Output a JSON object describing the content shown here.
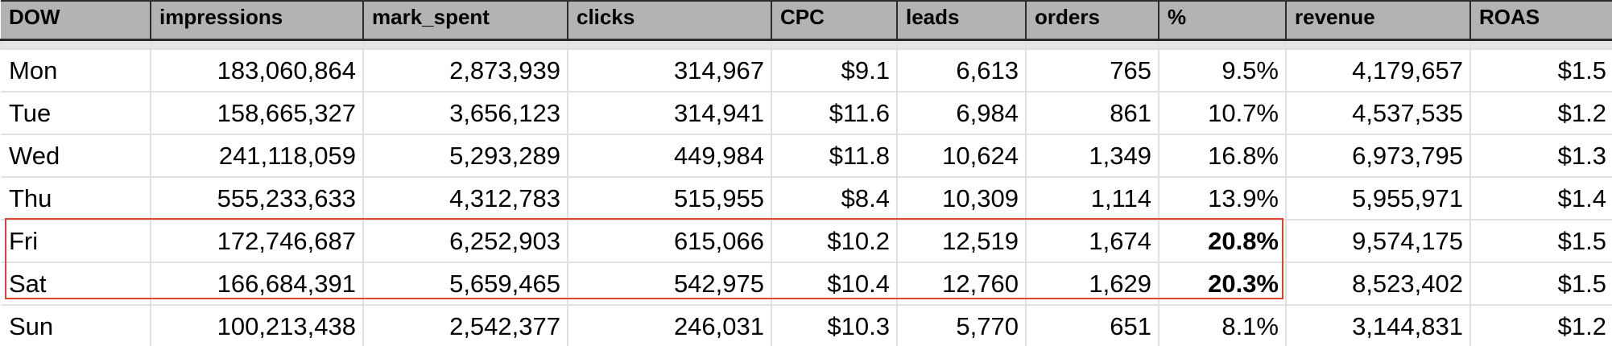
{
  "table": {
    "headers": [
      "DOW",
      "impressions",
      "mark_spent",
      "clicks",
      "CPC",
      "leads",
      "orders",
      "%",
      "revenue",
      "ROAS"
    ],
    "rows": [
      [
        "Mon",
        "183,060,864",
        "2,873,939",
        "314,967",
        "$9.1",
        "6,613",
        "765",
        "9.5%",
        "4,179,657",
        "$1.5"
      ],
      [
        "Tue",
        "158,665,327",
        "3,656,123",
        "314,941",
        "$11.6",
        "6,984",
        "861",
        "10.7%",
        "4,537,535",
        "$1.2"
      ],
      [
        "Wed",
        "241,118,059",
        "5,293,289",
        "449,984",
        "$11.8",
        "10,624",
        "1,349",
        "16.8%",
        "6,973,795",
        "$1.3"
      ],
      [
        "Thu",
        "555,233,633",
        "4,312,783",
        "515,955",
        "$8.4",
        "10,309",
        "1,114",
        "13.9%",
        "5,955,971",
        "$1.4"
      ],
      [
        "Fri",
        "172,746,687",
        "6,252,903",
        "615,066",
        "$10.2",
        "12,519",
        "1,674",
        "20.8%",
        "9,574,175",
        "$1.5"
      ],
      [
        "Sat",
        "166,684,391",
        "5,659,465",
        "542,975",
        "$10.4",
        "12,760",
        "1,629",
        "20.3%",
        "8,523,402",
        "$1.5"
      ],
      [
        "Sun",
        "100,213,438",
        "2,542,377",
        "246,031",
        "$10.3",
        "5,770",
        "651",
        "8.1%",
        "3,144,831",
        "$1.2"
      ]
    ]
  },
  "highlight": {
    "rows": [
      "Fri",
      "Sat"
    ],
    "color": "#e0432f"
  },
  "colors": {
    "header_bg": "#b3b3b3",
    "grid_line": "#e1e1e1"
  }
}
